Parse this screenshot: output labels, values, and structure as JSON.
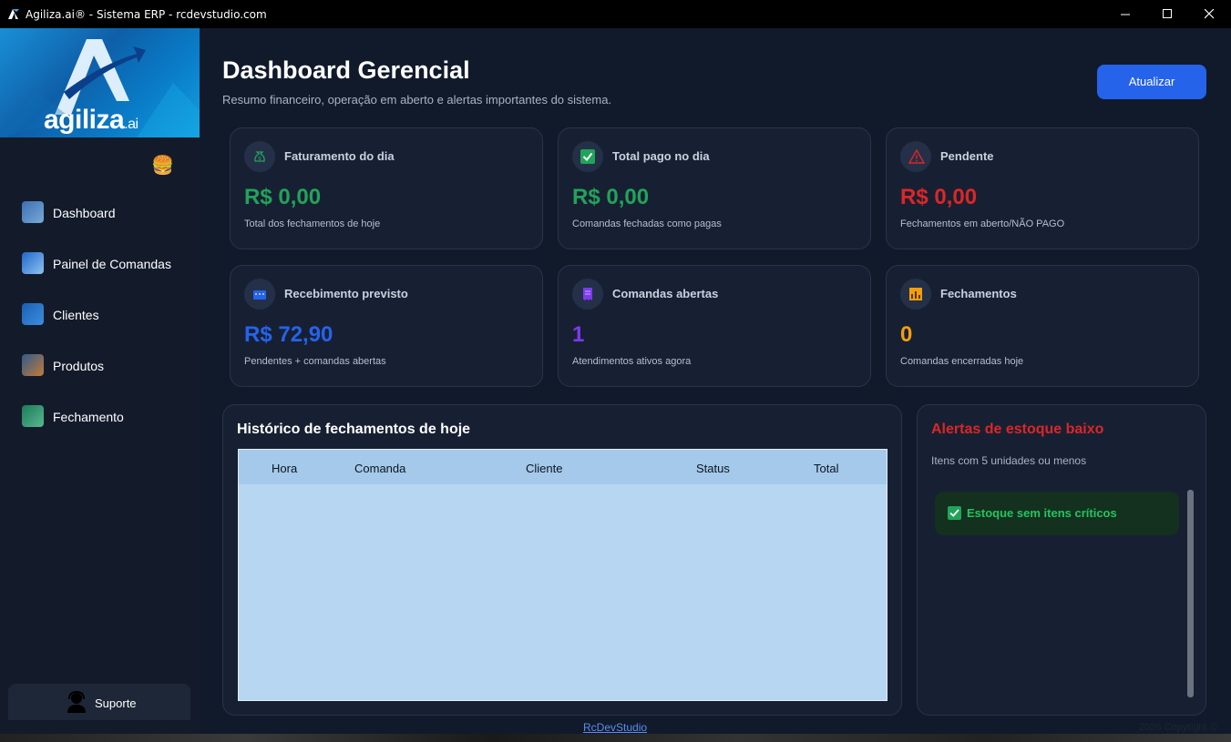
{
  "window": {
    "title": "Agiliza.ai® - Sistema ERP - rcdevstudio.com"
  },
  "sidebar": {
    "logo_text": "agiliza",
    "logo_suffix": ".ai",
    "menu_icon": "burger-icon",
    "items": [
      {
        "label": "Dashboard",
        "icon": "dashboard-icon"
      },
      {
        "label": "Painel de Comandas",
        "icon": "orders-panel-icon"
      },
      {
        "label": "Clientes",
        "icon": "clients-icon"
      },
      {
        "label": "Produtos",
        "icon": "products-icon"
      },
      {
        "label": "Fechamento",
        "icon": "closing-icon"
      }
    ],
    "support_label": "Suporte"
  },
  "header": {
    "title": "Dashboard Gerencial",
    "subtitle": "Resumo financeiro, operação em aberto e alertas importantes do sistema.",
    "refresh_label": "Atualizar"
  },
  "cards": [
    {
      "title": "Faturamento do dia",
      "value": "R$ 0,00",
      "desc": "Total dos fechamentos de hoje",
      "color": "#22a35a",
      "icon": "money-bag-icon"
    },
    {
      "title": "Total pago no dia",
      "value": "R$ 0,00",
      "desc": "Comandas fechadas como pagas",
      "color": "#22a35a",
      "icon": "check-icon"
    },
    {
      "title": "Pendente",
      "value": "R$ 0,00",
      "desc": "Fechamentos em aberto/NÃO PAGO",
      "color": "#dc2626",
      "icon": "warning-icon"
    },
    {
      "title": "Recebimento previsto",
      "value": "R$ 72,90",
      "desc": "Pendentes + comandas abertas",
      "color": "#2563eb",
      "icon": "calendar-icon"
    },
    {
      "title": "Comandas abertas",
      "value": "1",
      "desc": "Atendimentos ativos agora",
      "color": "#7c3aed",
      "icon": "receipt-icon"
    },
    {
      "title": "Fechamentos",
      "value": "0",
      "desc": "Comandas encerradas hoje",
      "color": "#f59e0b",
      "icon": "bar-chart-icon"
    }
  ],
  "history": {
    "title": "Histórico de fechamentos de hoje",
    "columns": [
      "Hora",
      "Comanda",
      "Cliente",
      "Status",
      "Total"
    ],
    "rows": []
  },
  "alerts": {
    "title": "Alertas de estoque baixo",
    "title_color": "#dc2626",
    "subtitle": "Itens com 5 unidades ou menos",
    "ok_message": "Estoque sem itens críticos"
  },
  "footer": {
    "link": "RcDevStudio",
    "copyright": "2026 Copyright ©"
  }
}
